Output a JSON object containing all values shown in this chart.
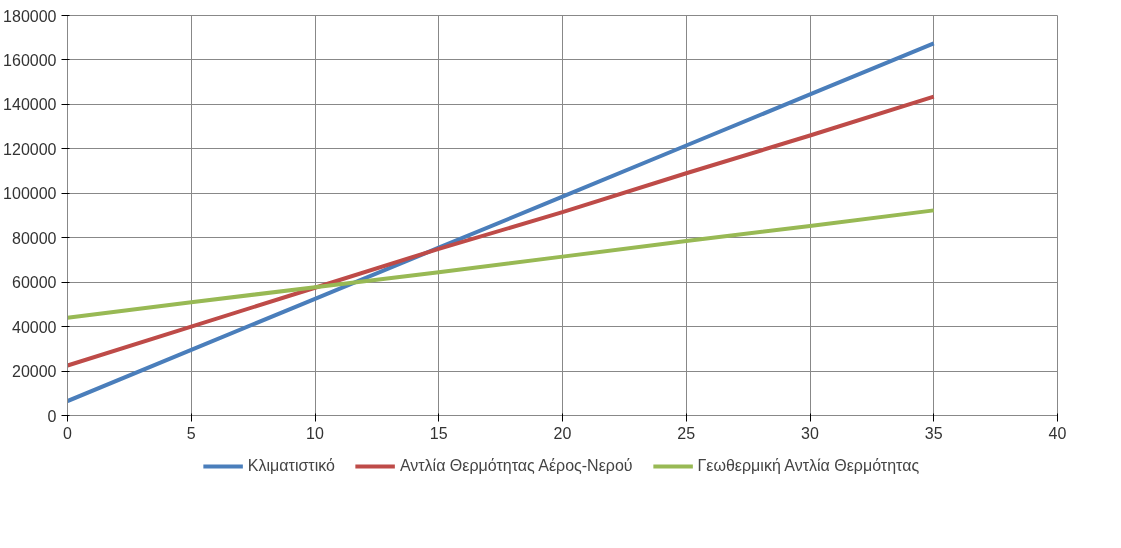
{
  "chart_data": {
    "type": "line",
    "x": [
      0,
      5,
      10,
      15,
      20,
      25,
      30,
      35
    ],
    "series": [
      {
        "name": "Κλιματιστικό",
        "color": "#4a7ebb",
        "values": [
          6500,
          29500,
          52500,
          75500,
          98500,
          121500,
          144500,
          167500
        ]
      },
      {
        "name": "Αντλία Θερμότητας Αέρος-Νερού",
        "color": "#be4b48",
        "values": [
          22500,
          40000,
          57500,
          75000,
          91500,
          109000,
          126000,
          143500
        ]
      },
      {
        "name": "Γεωθερμική Αντλία Θερμότητας",
        "color": "#98b954",
        "values": [
          44000,
          51000,
          57700,
          64500,
          71500,
          78500,
          85300,
          92300
        ]
      }
    ],
    "xlim": [
      0,
      40
    ],
    "xticks": [
      0,
      5,
      10,
      15,
      20,
      25,
      30,
      35,
      40
    ],
    "ylim": [
      0,
      180000
    ],
    "yticks": [
      0,
      20000,
      40000,
      60000,
      80000,
      100000,
      120000,
      140000,
      160000,
      180000
    ],
    "grid": true,
    "legend": "bottom",
    "marker": "none",
    "line_style": "solid"
  }
}
